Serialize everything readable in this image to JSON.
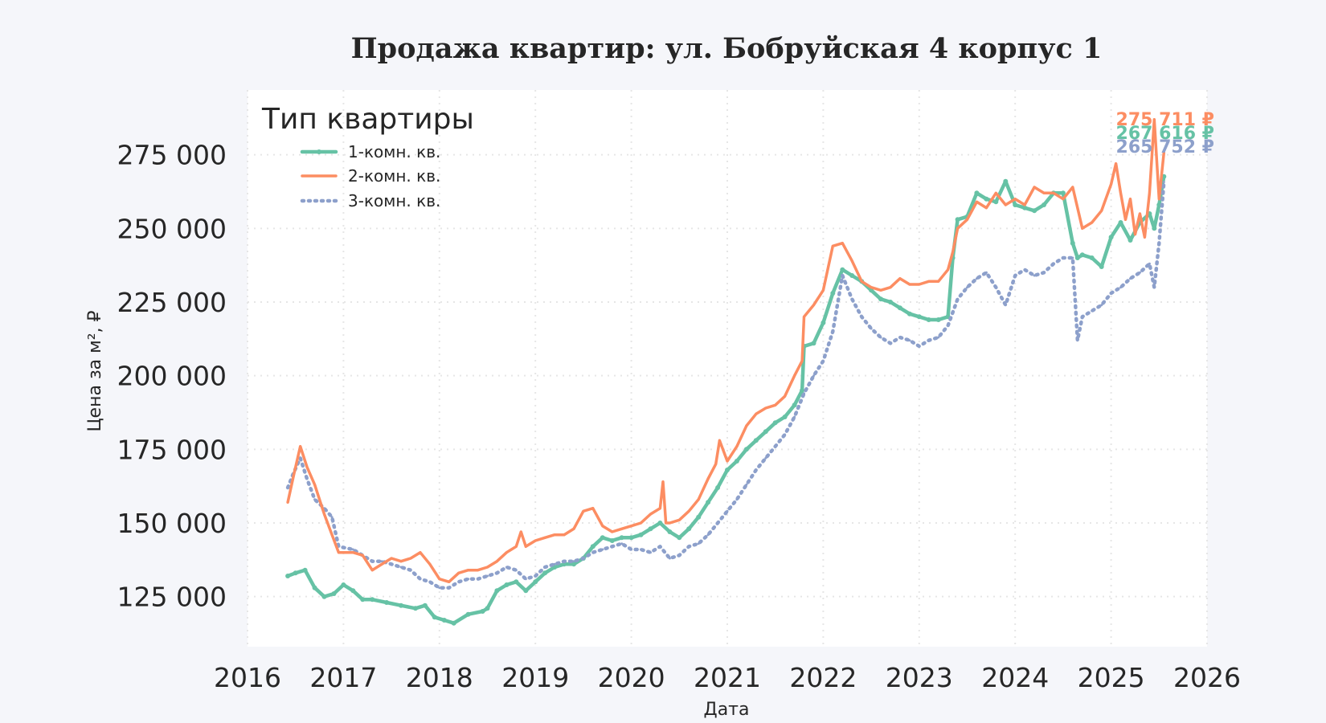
{
  "chart_data": {
    "type": "line",
    "title": "Продажа квартир: ул. Бобруйская 4 корпус 1",
    "xlabel": "Дата",
    "ylabel": "Цена за м², ₽",
    "xlim": [
      2016,
      2026
    ],
    "ylim": [
      108000,
      297000
    ],
    "x_ticks": [
      "2016",
      "2017",
      "2018",
      "2019",
      "2020",
      "2021",
      "2022",
      "2023",
      "2024",
      "2025",
      "2026"
    ],
    "y_ticks": [
      "125 000",
      "150 000",
      "175 000",
      "200 000",
      "225 000",
      "250 000",
      "275 000"
    ],
    "y_tick_values": [
      125000,
      150000,
      175000,
      200000,
      225000,
      250000,
      275000
    ],
    "grid": true,
    "legend": {
      "title": "Тип квартиры",
      "placement": "top-left"
    },
    "series": [
      {
        "name": "1-комн. кв.",
        "color": "#66c2a5",
        "style": "solid-markers",
        "end_label": "267 616 ₽",
        "x": [
          2016.42,
          2016.5,
          2016.6,
          2016.7,
          2016.8,
          2016.9,
          2017.0,
          2017.1,
          2017.2,
          2017.3,
          2017.45,
          2017.6,
          2017.75,
          2017.85,
          2017.95,
          2018.05,
          2018.15,
          2018.3,
          2018.45,
          2018.5,
          2018.6,
          2018.7,
          2018.8,
          2018.9,
          2019.0,
          2019.1,
          2019.2,
          2019.3,
          2019.4,
          2019.5,
          2019.6,
          2019.7,
          2019.8,
          2019.9,
          2020.0,
          2020.1,
          2020.2,
          2020.3,
          2020.4,
          2020.5,
          2020.6,
          2020.7,
          2020.8,
          2020.9,
          2021.0,
          2021.1,
          2021.2,
          2021.3,
          2021.4,
          2021.5,
          2021.6,
          2021.7,
          2021.78,
          2021.8,
          2021.9,
          2022.0,
          2022.1,
          2022.2,
          2022.3,
          2022.4,
          2022.5,
          2022.6,
          2022.7,
          2022.8,
          2022.9,
          2023.0,
          2023.1,
          2023.2,
          2023.3,
          2023.35,
          2023.4,
          2023.5,
          2023.6,
          2023.7,
          2023.8,
          2023.9,
          2024.0,
          2024.1,
          2024.2,
          2024.3,
          2024.4,
          2024.5,
          2024.6,
          2024.65,
          2024.7,
          2024.8,
          2024.9,
          2025.0,
          2025.1,
          2025.2,
          2025.3,
          2025.4,
          2025.45,
          2025.5,
          2025.55
        ],
        "y": [
          132000,
          133000,
          134000,
          128000,
          125000,
          126000,
          129000,
          127000,
          124000,
          124000,
          123000,
          122000,
          121000,
          122000,
          118000,
          117000,
          116000,
          119000,
          120000,
          121000,
          127000,
          129000,
          130000,
          127000,
          130000,
          133000,
          135000,
          136000,
          136000,
          138000,
          142000,
          145000,
          144000,
          145000,
          145000,
          146000,
          148000,
          150000,
          147000,
          145000,
          148000,
          152000,
          157000,
          162000,
          168000,
          171000,
          175000,
          178000,
          181000,
          184000,
          186000,
          190000,
          195000,
          210000,
          211000,
          218000,
          228000,
          236000,
          234000,
          232000,
          229000,
          226000,
          225000,
          223000,
          221000,
          220000,
          219000,
          219000,
          220000,
          240000,
          253000,
          254000,
          262000,
          260000,
          259000,
          266000,
          258000,
          257000,
          256000,
          258000,
          262000,
          262000,
          245000,
          240000,
          241000,
          240000,
          237000,
          247000,
          252000,
          246000,
          252000,
          255000,
          250000,
          258000,
          267616
        ]
      },
      {
        "name": "2-комн. кв.",
        "color": "#fc8d62",
        "style": "solid",
        "end_label": "275 711 ₽",
        "x": [
          2016.42,
          2016.48,
          2016.55,
          2016.62,
          2016.7,
          2016.8,
          2016.88,
          2016.95,
          2017.1,
          2017.2,
          2017.3,
          2017.4,
          2017.5,
          2017.6,
          2017.7,
          2017.8,
          2017.9,
          2018.0,
          2018.1,
          2018.2,
          2018.3,
          2018.4,
          2018.5,
          2018.6,
          2018.7,
          2018.8,
          2018.85,
          2018.9,
          2019.0,
          2019.1,
          2019.2,
          2019.3,
          2019.4,
          2019.5,
          2019.6,
          2019.7,
          2019.8,
          2019.9,
          2020.0,
          2020.1,
          2020.2,
          2020.3,
          2020.33,
          2020.36,
          2020.4,
          2020.5,
          2020.6,
          2020.7,
          2020.8,
          2020.88,
          2020.92,
          2021.0,
          2021.1,
          2021.2,
          2021.3,
          2021.4,
          2021.5,
          2021.6,
          2021.7,
          2021.78,
          2021.8,
          2021.9,
          2022.0,
          2022.1,
          2022.2,
          2022.3,
          2022.4,
          2022.5,
          2022.6,
          2022.7,
          2022.8,
          2022.9,
          2023.0,
          2023.1,
          2023.2,
          2023.3,
          2023.35,
          2023.4,
          2023.5,
          2023.6,
          2023.7,
          2023.8,
          2023.9,
          2024.0,
          2024.1,
          2024.2,
          2024.3,
          2024.4,
          2024.5,
          2024.6,
          2024.7,
          2024.8,
          2024.9,
          2025.0,
          2025.05,
          2025.1,
          2025.15,
          2025.2,
          2025.25,
          2025.3,
          2025.35,
          2025.4,
          2025.45,
          2025.5,
          2025.55
        ],
        "y": [
          157000,
          166000,
          176000,
          169000,
          163000,
          153000,
          146000,
          140000,
          140000,
          139000,
          134000,
          136000,
          138000,
          137000,
          138000,
          140000,
          136000,
          131000,
          130000,
          133000,
          134000,
          134000,
          135000,
          137000,
          140000,
          142000,
          147000,
          142000,
          144000,
          145000,
          146000,
          146000,
          148000,
          154000,
          155000,
          149000,
          147000,
          148000,
          149000,
          150000,
          153000,
          155000,
          164000,
          150000,
          150000,
          151000,
          154000,
          158000,
          165000,
          170000,
          178000,
          171000,
          176000,
          183000,
          187000,
          189000,
          190000,
          193000,
          200000,
          205000,
          220000,
          224000,
          229000,
          244000,
          245000,
          239000,
          232000,
          230000,
          229000,
          230000,
          233000,
          231000,
          231000,
          232000,
          232000,
          236000,
          242000,
          250000,
          253000,
          259000,
          257000,
          262000,
          258000,
          260000,
          258000,
          264000,
          262000,
          262000,
          260000,
          264000,
          250000,
          252000,
          256000,
          265000,
          272000,
          262000,
          253000,
          260000,
          248000,
          255000,
          247000,
          262000,
          287000,
          260000,
          275711
        ]
      },
      {
        "name": "3-комн. кв.",
        "color": "#8da0cb",
        "style": "dotted",
        "end_label": "265 752 ₽",
        "x": [
          2016.42,
          2016.48,
          2016.55,
          2016.62,
          2016.7,
          2016.8,
          2016.88,
          2016.95,
          2017.1,
          2017.2,
          2017.3,
          2017.4,
          2017.5,
          2017.6,
          2017.7,
          2017.8,
          2017.9,
          2018.0,
          2018.1,
          2018.2,
          2018.3,
          2018.4,
          2018.5,
          2018.6,
          2018.7,
          2018.8,
          2018.9,
          2019.0,
          2019.1,
          2019.2,
          2019.3,
          2019.4,
          2019.5,
          2019.6,
          2019.7,
          2019.8,
          2019.9,
          2020.0,
          2020.1,
          2020.2,
          2020.3,
          2020.4,
          2020.5,
          2020.6,
          2020.7,
          2020.8,
          2020.9,
          2021.0,
          2021.1,
          2021.2,
          2021.3,
          2021.4,
          2021.5,
          2021.6,
          2021.7,
          2021.8,
          2021.9,
          2022.0,
          2022.1,
          2022.2,
          2022.3,
          2022.4,
          2022.5,
          2022.6,
          2022.7,
          2022.8,
          2022.9,
          2023.0,
          2023.1,
          2023.2,
          2023.3,
          2023.4,
          2023.5,
          2023.6,
          2023.7,
          2023.8,
          2023.9,
          2024.0,
          2024.1,
          2024.2,
          2024.3,
          2024.4,
          2024.5,
          2024.6,
          2024.65,
          2024.7,
          2024.8,
          2024.9,
          2025.0,
          2025.1,
          2025.2,
          2025.3,
          2025.4,
          2025.45,
          2025.5,
          2025.55
        ],
        "y": [
          162000,
          167000,
          172000,
          165000,
          158000,
          155000,
          152000,
          142000,
          141000,
          139000,
          137000,
          137000,
          136000,
          135000,
          134000,
          131000,
          130000,
          128000,
          128000,
          130000,
          131000,
          131000,
          132000,
          133000,
          135000,
          134000,
          131000,
          132000,
          135000,
          136000,
          137000,
          137000,
          138000,
          140000,
          141000,
          142000,
          143000,
          141000,
          141000,
          140000,
          142000,
          138000,
          139000,
          142000,
          143000,
          146000,
          150000,
          154000,
          158000,
          163000,
          168000,
          172000,
          176000,
          180000,
          186000,
          194000,
          200000,
          205000,
          215000,
          234000,
          226000,
          220000,
          216000,
          213000,
          211000,
          213000,
          212000,
          210000,
          212000,
          213000,
          217000,
          226000,
          230000,
          233000,
          235000,
          230000,
          224000,
          234000,
          236000,
          234000,
          235000,
          238000,
          240000,
          240000,
          212000,
          220000,
          222000,
          224000,
          228000,
          230000,
          233000,
          235000,
          238000,
          230000,
          245000,
          265752
        ]
      }
    ]
  }
}
